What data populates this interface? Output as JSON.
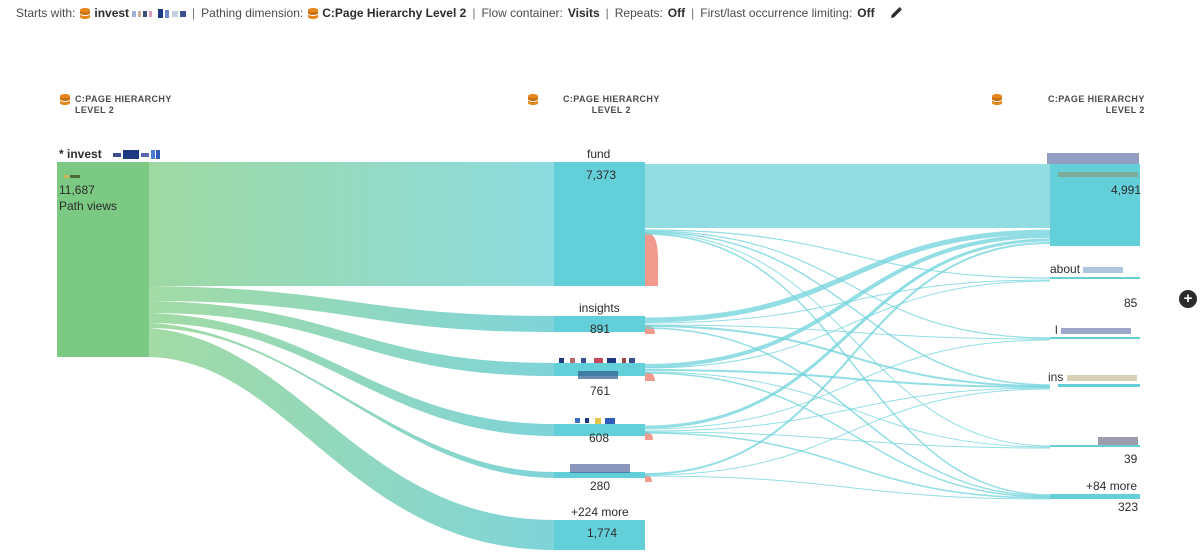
{
  "summary": {
    "starts_with_label": "Starts with:",
    "starts_with_value": "invest",
    "pathing_label": "Pathing dimension:",
    "pathing_value": "C:Page Hierarchy Level 2",
    "flow_label": "Flow container:",
    "flow_value": "Visits",
    "repeats_label": "Repeats:",
    "repeats_value": "Off",
    "limit_label": "First/last occurrence limiting:",
    "limit_value": "Off",
    "separator": "|",
    "icon": "pencil-icon"
  },
  "columns": [
    {
      "line1": "C:PAGE HIERARCHY",
      "line2": "LEVEL 2",
      "icon": "dimension-icon"
    },
    {
      "line1": "C:PAGE HIERARCHY",
      "line2": "LEVEL 2",
      "icon": "dimension-icon"
    },
    {
      "line1": "C:PAGE HIERARCHY",
      "line2": "LEVEL 2",
      "icon": "dimension-icon"
    }
  ],
  "entry_node": {
    "label": "* invest",
    "count": "11,687",
    "caption": "Path views"
  },
  "middle_nodes": [
    {
      "label": "fund",
      "count": "7,373"
    },
    {
      "label": "insights",
      "count": "891"
    },
    {
      "label": "",
      "count": "761"
    },
    {
      "label": "",
      "count": "608"
    },
    {
      "label": "",
      "count": "280"
    },
    {
      "label": "+224 more",
      "count": "1,774"
    }
  ],
  "right_nodes": [
    {
      "label": "",
      "count": "4,991"
    },
    {
      "label": "about",
      "count": "85"
    },
    {
      "label": "l",
      "count": ""
    },
    {
      "label": "ins",
      "count": ""
    },
    {
      "label": "",
      "count": "39"
    },
    {
      "label": "+84 more",
      "count": "323"
    }
  ],
  "add_button": "+",
  "colors": {
    "green": "#7bc982",
    "teal": "#63cfd8",
    "teal_light": "#92dde2",
    "exit": "#ef9a8c",
    "text": "#2c2c2c"
  }
}
